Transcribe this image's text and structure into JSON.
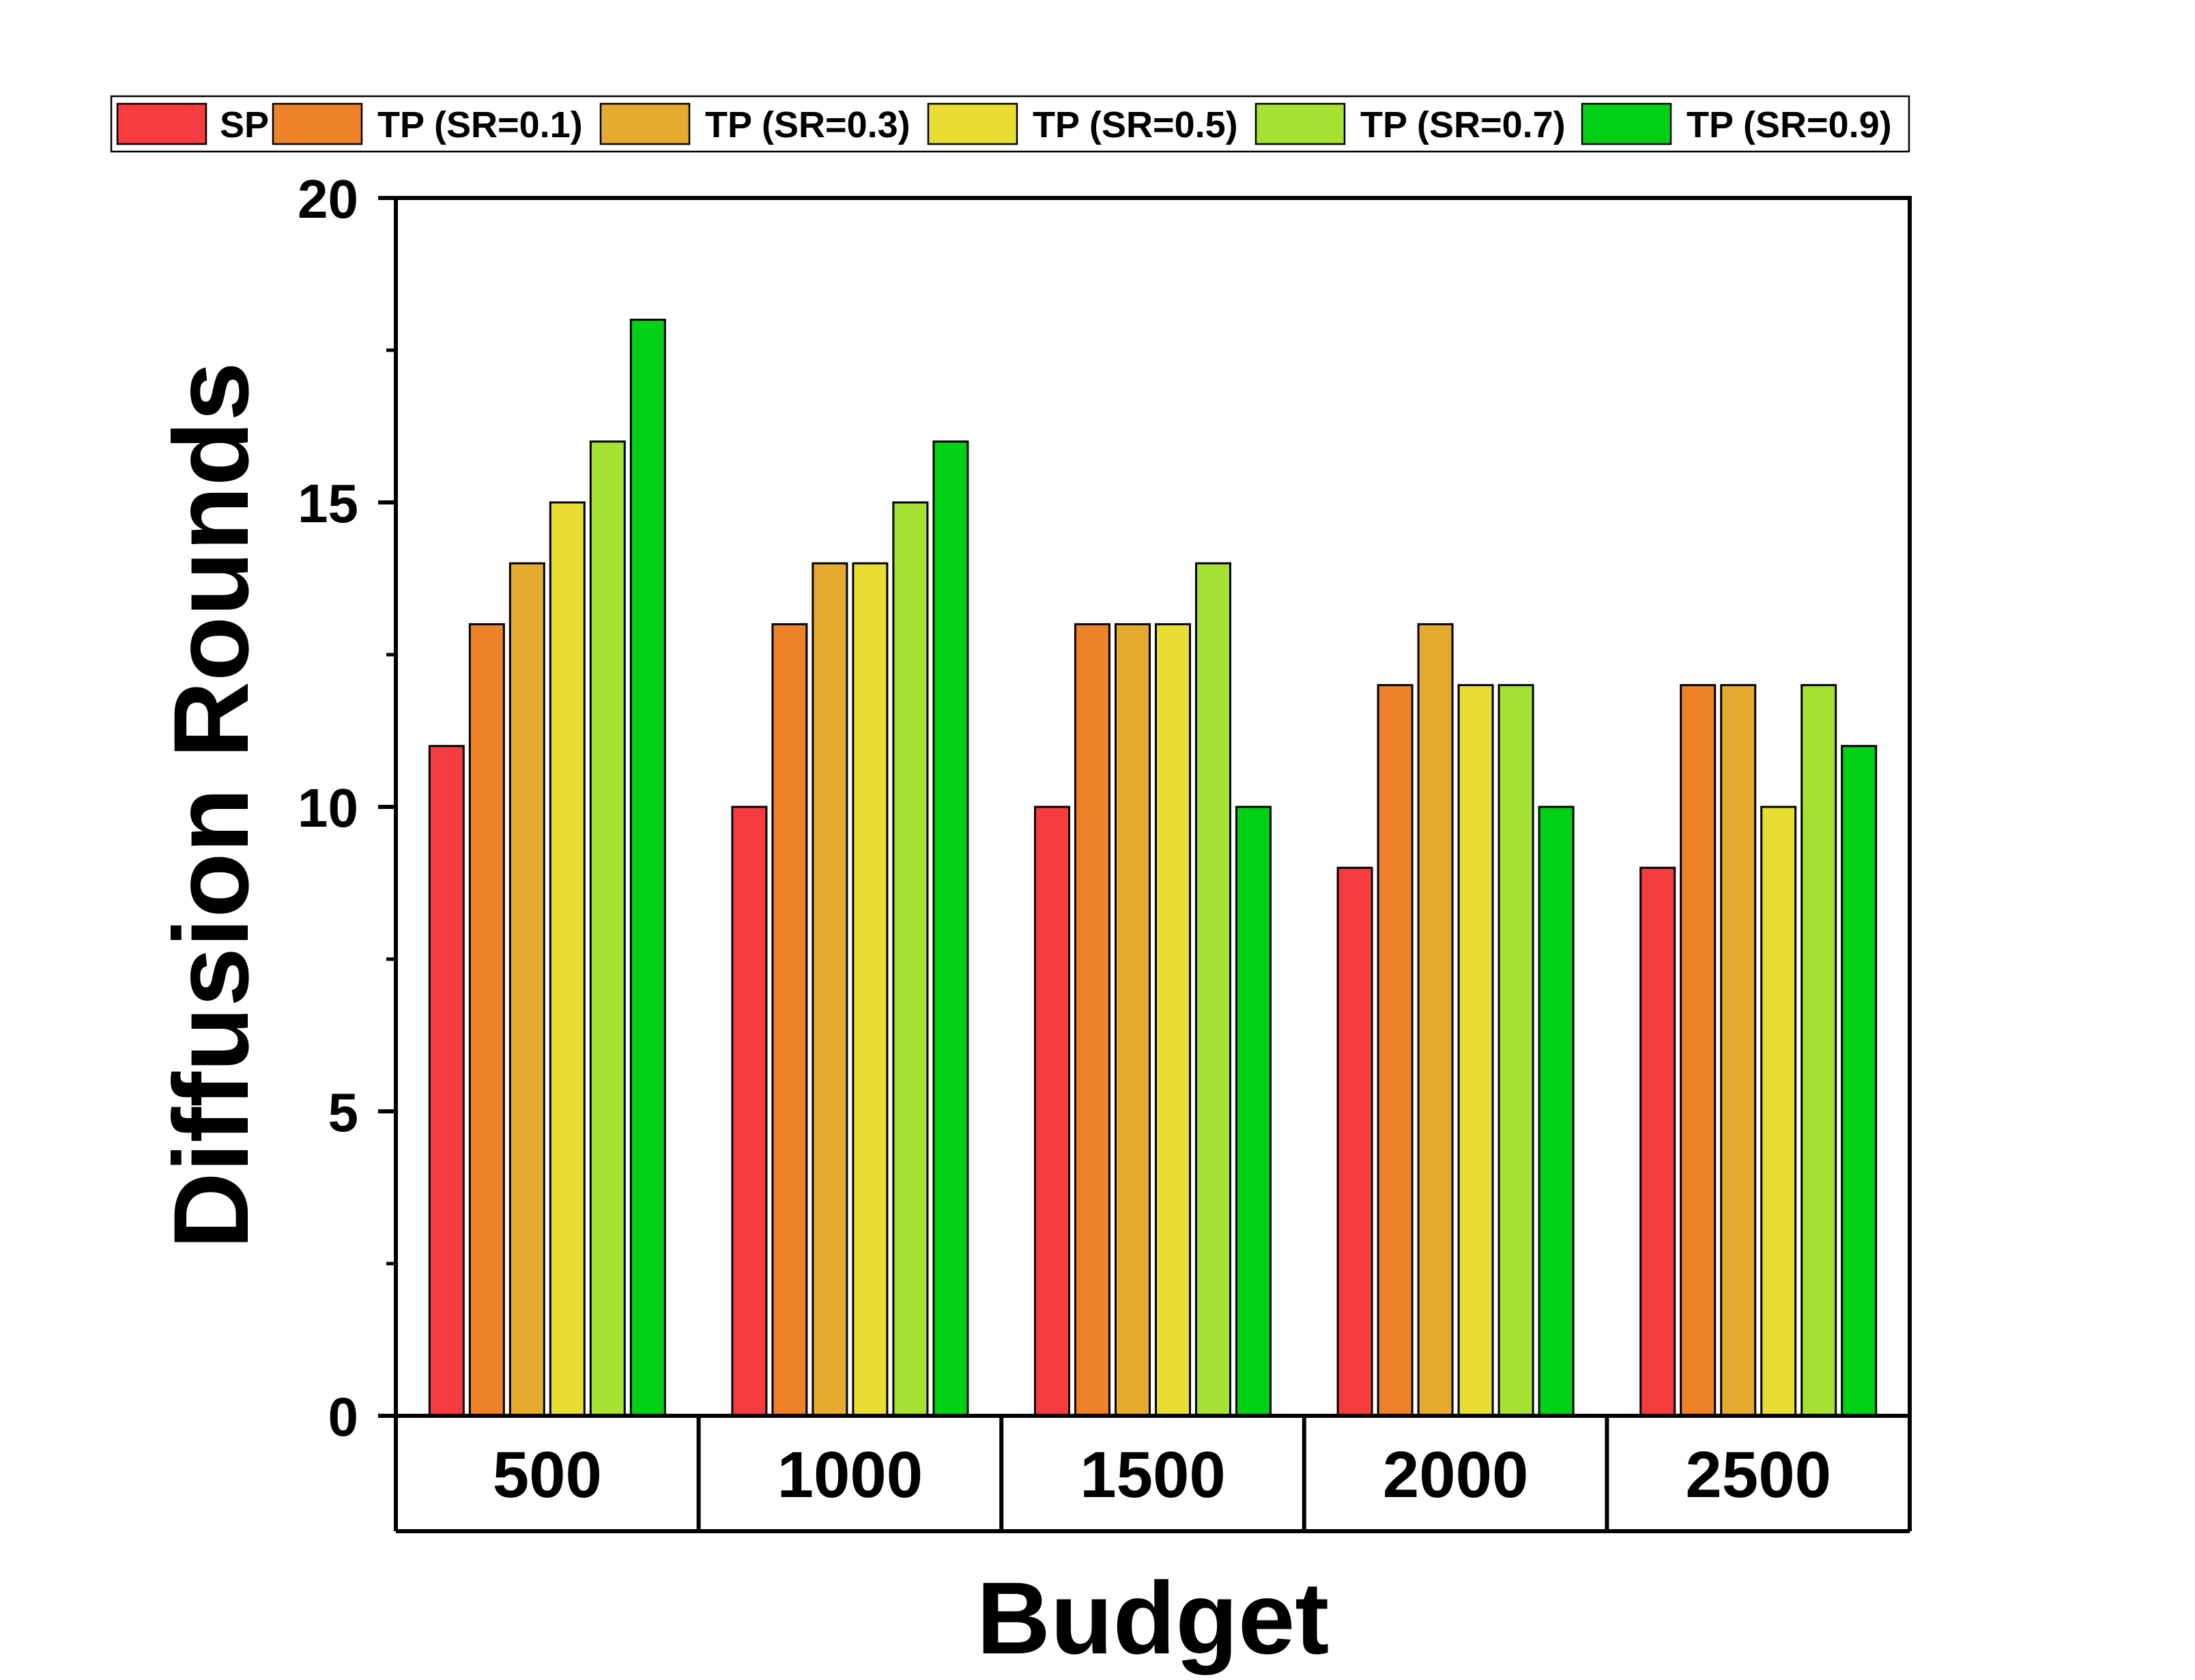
{
  "chart_data": {
    "type": "bar",
    "title": "",
    "xlabel": "Budget",
    "ylabel": "Diffusion Rounds",
    "ylim": [
      0,
      20
    ],
    "yticks": [
      "0",
      "5",
      "10",
      "15",
      "20"
    ],
    "categories": [
      "500",
      "1000",
      "1500",
      "2000",
      "2500"
    ],
    "legend_position": "top",
    "series": [
      {
        "name": "SP",
        "color": "#f73c3f",
        "values": [
          11,
          10,
          10,
          9,
          9
        ]
      },
      {
        "name": "TP (SR=0.1)",
        "color": "#ee8229",
        "values": [
          13,
          13,
          13,
          12,
          12
        ]
      },
      {
        "name": "TP (SR=0.3)",
        "color": "#e6aa2f",
        "values": [
          14,
          14,
          13,
          13,
          12
        ]
      },
      {
        "name": "TP (SR=0.5)",
        "color": "#e9dc32",
        "values": [
          15,
          14,
          13,
          12,
          10
        ]
      },
      {
        "name": "TP (SR=0.7)",
        "color": "#a5e233",
        "values": [
          16,
          15,
          14,
          12,
          12
        ]
      },
      {
        "name": "TP (SR=0.9)",
        "color": "#00d116",
        "values": [
          18,
          16,
          10,
          10,
          11
        ]
      }
    ]
  }
}
